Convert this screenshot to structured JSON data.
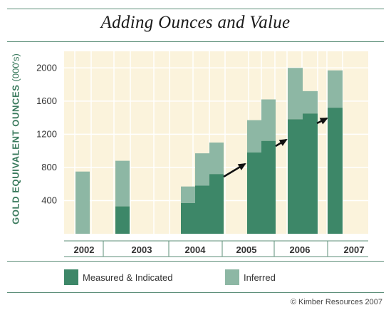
{
  "chart_data": {
    "type": "bar",
    "title": "Adding Ounces and Value",
    "ylabel": "GOLD EQUIVALENT OUNCES",
    "ylabel_unit": "(000's)",
    "ylim": [
      0,
      2200
    ],
    "yticks": [
      400,
      800,
      1200,
      1600,
      2000
    ],
    "categories": [
      "2002",
      "2003",
      "2004",
      "2005",
      "2006",
      "2007"
    ],
    "legend_position": "bottom",
    "series": [
      {
        "name": "Measured & Indicated",
        "color": "#3d8768"
      },
      {
        "name": "Inferred",
        "color": "#8db7a4"
      }
    ],
    "bars": [
      {
        "year": "2002",
        "mi": 0,
        "total": 750
      },
      {
        "year": "2003",
        "mi": 330,
        "total": 880
      },
      {
        "year": "2004",
        "mi": 370,
        "total": 570
      },
      {
        "year": "2004",
        "mi": 580,
        "total": 970
      },
      {
        "year": "2004",
        "mi": 720,
        "total": 1100
      },
      {
        "year": "2005",
        "mi": 980,
        "total": 1370
      },
      {
        "year": "2005",
        "mi": 1120,
        "total": 1620
      },
      {
        "year": "2006",
        "mi": 1380,
        "total": 2000
      },
      {
        "year": "2006",
        "mi": 1450,
        "total": 1720
      },
      {
        "year": "2007",
        "mi": 1520,
        "total": 1970
      }
    ],
    "annotations": [
      "arrow 2004 to 2005",
      "arrow 2005 to 2006",
      "arrow 2006 to 2007"
    ],
    "grid": true
  },
  "colors": {
    "plot_background": "#fbf3dc",
    "grid": "#ffffff",
    "accent": "#3a7a5d"
  },
  "copyright": "© Kimber Resources 2007"
}
